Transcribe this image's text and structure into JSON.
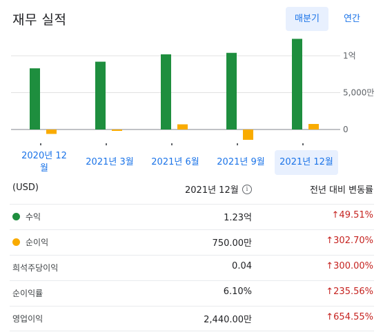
{
  "header": {
    "title": "재무 실적",
    "quarterly_label": "매분기",
    "annual_label": "연간"
  },
  "chart_data": {
    "type": "bar",
    "categories": [
      "2020년 12월",
      "2021년 3월",
      "2021년 6월",
      "2021년 9월",
      "2021년 12월"
    ],
    "series": [
      {
        "color": "#1e8e3e",
        "values": [
          8300,
          9200,
          10200,
          10400,
          12300
        ]
      },
      {
        "color": "#f9ab00",
        "values": [
          -600,
          -100,
          700,
          -1400,
          750
        ]
      }
    ],
    "y_tick_labels": [
      "1억",
      "5,000만",
      "0"
    ],
    "y_ticks": [
      10000,
      5000,
      0
    ],
    "ylim": [
      -1800,
      14000
    ],
    "grid": true,
    "selected": "2021년 12월"
  },
  "periods": [
    {
      "line1": "2020년 12",
      "line2": "월"
    },
    {
      "line1": "2021년 3월",
      "line2": ""
    },
    {
      "line1": "2021년 6월",
      "line2": ""
    },
    {
      "line1": "2021년 9월",
      "line2": ""
    },
    {
      "line1": "2021년 12월",
      "line2": ""
    }
  ],
  "table": {
    "currency": "(USD)",
    "period_header": "2021년 12월",
    "change_header": "전년 대비 변동률",
    "info_icon": "i",
    "rows": [
      {
        "label": "수익",
        "value": "1.23억",
        "change": "↑49.51%",
        "dot": "#1e8e3e"
      },
      {
        "label": "순이익",
        "value": "750.00만",
        "change": "↑302.70%",
        "dot": "#f9ab00"
      },
      {
        "label": "희석주당이익",
        "value": "0.04",
        "change": "↑300.00%"
      },
      {
        "label": "순이익률",
        "value": "6.10%",
        "change": "↑235.56%"
      },
      {
        "label": "영업이익",
        "value": "2,440.00만",
        "change": "↑654.55%"
      }
    ]
  }
}
